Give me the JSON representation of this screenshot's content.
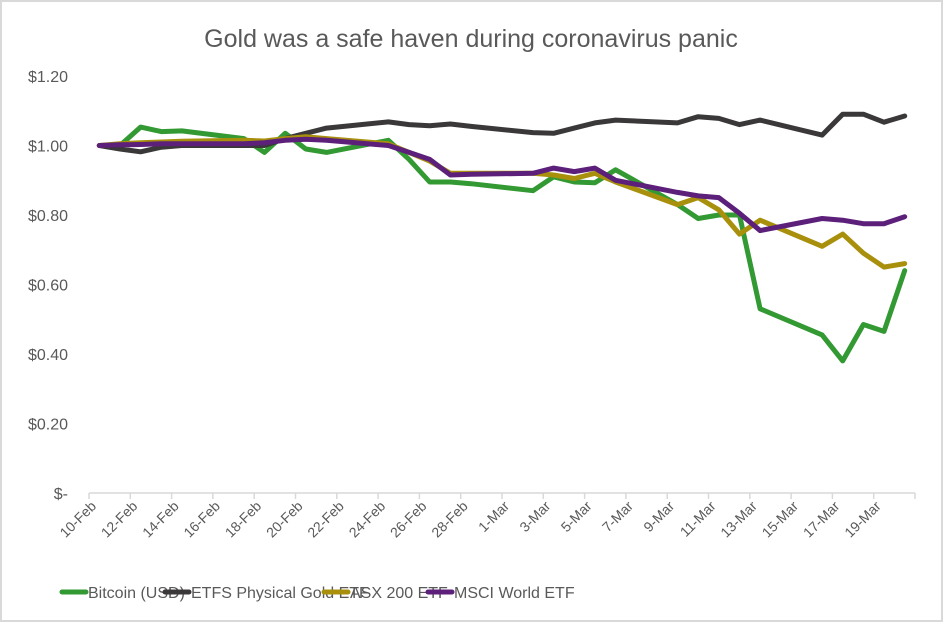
{
  "chart_data": {
    "type": "line",
    "title": "Gold was a safe haven during coronavirus panic",
    "xlabel": "",
    "ylabel": "",
    "ylim": [
      0,
      1.2
    ],
    "yticks": [
      0,
      0.2,
      0.4,
      0.6,
      0.8,
      1.0,
      1.2
    ],
    "ytick_labels": [
      "$-",
      "$0.20",
      "$0.40",
      "$0.60",
      "$0.80",
      "$1.00",
      "$1.20"
    ],
    "xtick_labels": [
      "10-Feb",
      "12-Feb",
      "14-Feb",
      "16-Feb",
      "18-Feb",
      "20-Feb",
      "22-Feb",
      "24-Feb",
      "26-Feb",
      "28-Feb",
      "1-Mar",
      "3-Mar",
      "5-Mar",
      "7-Mar",
      "9-Mar",
      "11-Mar",
      "13-Mar",
      "15-Mar",
      "17-Mar",
      "19-Mar"
    ],
    "x_range": [
      "10-Feb",
      "21-Mar"
    ],
    "grid": false,
    "legend_position": "bottom",
    "x": [
      "10-Feb",
      "11-Feb",
      "12-Feb",
      "13-Feb",
      "14-Feb",
      "17-Feb",
      "18-Feb",
      "19-Feb",
      "20-Feb",
      "21-Feb",
      "24-Feb",
      "25-Feb",
      "26-Feb",
      "27-Feb",
      "28-Feb",
      "2-Mar",
      "3-Mar",
      "4-Mar",
      "5-Mar",
      "6-Mar",
      "9-Mar",
      "10-Mar",
      "11-Mar",
      "12-Mar",
      "13-Mar",
      "16-Mar",
      "17-Mar",
      "18-Mar",
      "19-Mar",
      "20-Mar"
    ],
    "x_day_offsets": [
      0,
      1,
      2,
      3,
      4,
      7,
      8,
      9,
      10,
      11,
      14,
      15,
      16,
      17,
      18,
      21,
      22,
      23,
      24,
      25,
      28,
      29,
      30,
      31,
      32,
      35,
      36,
      37,
      38,
      39
    ],
    "series": [
      {
        "name": "Bitcoin (USD)",
        "color": "#339933",
        "values": [
          1.0,
          1.0,
          1.053,
          1.04,
          1.042,
          1.02,
          0.98,
          1.035,
          0.99,
          0.98,
          1.015,
          0.96,
          0.895,
          0.895,
          0.89,
          0.87,
          0.91,
          0.895,
          0.893,
          0.93,
          0.83,
          0.79,
          0.8,
          0.8,
          0.53,
          0.455,
          0.38,
          0.485,
          0.465,
          0.64
        ]
      },
      {
        "name": "ETFS Physical Gold ETF",
        "color": "#3a3838",
        "values": [
          1.0,
          0.99,
          0.982,
          0.995,
          1.0,
          1.0,
          1.0,
          1.02,
          1.035,
          1.05,
          1.068,
          1.06,
          1.057,
          1.062,
          1.055,
          1.037,
          1.035,
          1.05,
          1.065,
          1.073,
          1.065,
          1.083,
          1.078,
          1.06,
          1.073,
          1.03,
          1.09,
          1.09,
          1.067,
          1.085
        ]
      },
      {
        "name": "ASX 200 ETF",
        "color": "#a8900c",
        "values": [
          1.0,
          1.005,
          1.008,
          1.01,
          1.012,
          1.015,
          1.013,
          1.02,
          1.025,
          1.02,
          1.005,
          0.98,
          0.955,
          0.92,
          0.92,
          0.92,
          0.915,
          0.905,
          0.92,
          0.895,
          0.83,
          0.85,
          0.815,
          0.745,
          0.785,
          0.71,
          0.745,
          0.69,
          0.65,
          0.66
        ]
      },
      {
        "name": "MSCI World ETF",
        "color": "#5c1f7a",
        "values": [
          1.0,
          1.002,
          1.003,
          1.005,
          1.005,
          1.005,
          1.008,
          1.015,
          1.018,
          1.015,
          1.0,
          0.98,
          0.96,
          0.915,
          0.917,
          0.92,
          0.935,
          0.925,
          0.935,
          0.9,
          0.865,
          0.855,
          0.85,
          0.805,
          0.755,
          0.79,
          0.785,
          0.775,
          0.775,
          0.795
        ]
      }
    ]
  }
}
